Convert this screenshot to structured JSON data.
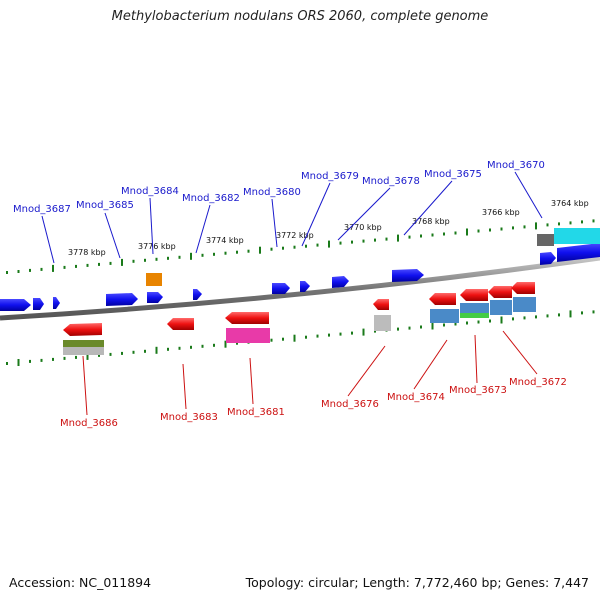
{
  "title": "Methylobacterium nodulans ORS 2060, complete genome",
  "footer": {
    "accession": "Accession: NC_011894",
    "stats": "Topology: circular; Length: 7,772,460 bp; Genes: 7,447"
  },
  "colors": {
    "forward_strand": "#1010ee",
    "reverse_strand": "#ee1111",
    "label_top": "#1a1acc",
    "label_bottom": "#cc1111",
    "tick": "#1a7a1a",
    "backbone": "#888888"
  },
  "scale_labels": [
    "3778 kbp",
    "3776 kbp",
    "3774 kbp",
    "3772 kbp",
    "3770 kbp",
    "3768 kbp",
    "3766 kbp",
    "3764 kbp"
  ],
  "genes_top": [
    "Mnod_3687",
    "Mnod_3685",
    "Mnod_3684",
    "Mnod_3682",
    "Mnod_3680",
    "Mnod_3679",
    "Mnod_3678",
    "Mnod_3675",
    "Mnod_3670"
  ],
  "genes_bottom": [
    "Mnod_3686",
    "Mnod_3683",
    "Mnod_3681",
    "Mnod_3676",
    "Mnod_3674",
    "Mnod_3673",
    "Mnod_3672"
  ]
}
